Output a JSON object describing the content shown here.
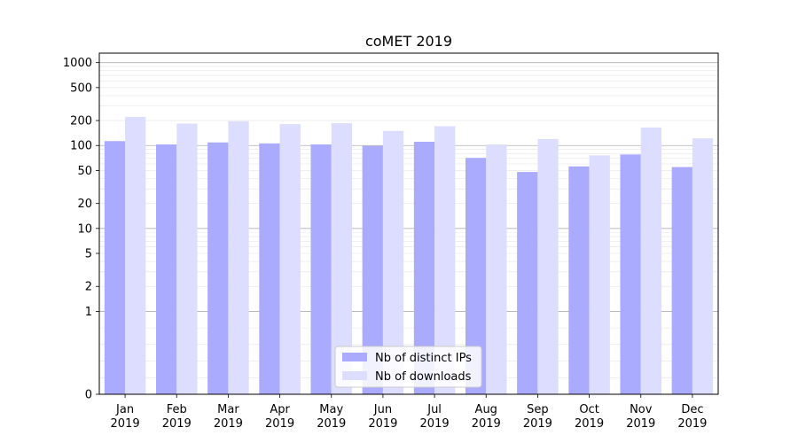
{
  "chart_data": {
    "type": "bar",
    "title": "coMET 2019",
    "xlabel": "",
    "ylabel": "",
    "yscale": "symlog",
    "ylim": [
      0,
      1300
    ],
    "yticks": [
      0,
      1,
      2,
      5,
      10,
      20,
      50,
      100,
      200,
      500,
      1000
    ],
    "ytick_labels": [
      "0",
      "1",
      "2",
      "5",
      "10",
      "20",
      "50",
      "100",
      "200",
      "500",
      "1000"
    ],
    "grid": true,
    "legend_position": "lower center",
    "categories": [
      [
        "Jan",
        "2019"
      ],
      [
        "Feb",
        "2019"
      ],
      [
        "Mar",
        "2019"
      ],
      [
        "Apr",
        "2019"
      ],
      [
        "May",
        "2019"
      ],
      [
        "Jun",
        "2019"
      ],
      [
        "Jul",
        "2019"
      ],
      [
        "Aug",
        "2019"
      ],
      [
        "Sep",
        "2019"
      ],
      [
        "Oct",
        "2019"
      ],
      [
        "Nov",
        "2019"
      ],
      [
        "Dec",
        "2019"
      ]
    ],
    "series": [
      {
        "name": "Nb of distinct IPs",
        "color": "#aaaaff",
        "values": [
          113,
          103,
          109,
          106,
          103,
          99,
          111,
          71,
          48,
          56,
          78,
          55
        ]
      },
      {
        "name": "Nb of downloads",
        "color": "#ddddff",
        "values": [
          222,
          184,
          196,
          181,
          186,
          150,
          171,
          103,
          120,
          76,
          165,
          122
        ]
      }
    ]
  }
}
